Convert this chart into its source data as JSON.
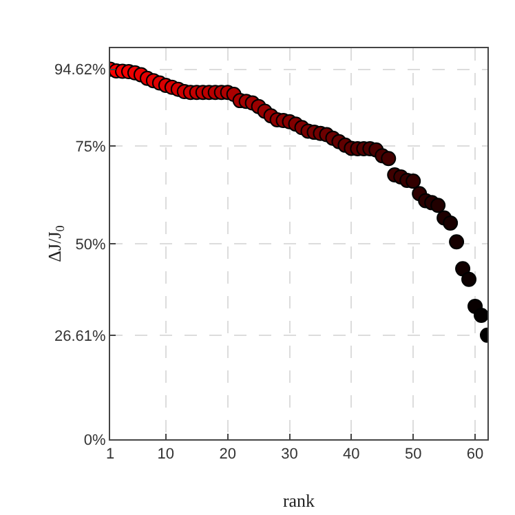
{
  "chart_data": {
    "type": "scatter",
    "xlabel": "rank",
    "ylabel": "ΔJ/J$_{0}$",
    "x": [
      1,
      2,
      3,
      4,
      5,
      6,
      7,
      8,
      9,
      10,
      11,
      12,
      13,
      14,
      15,
      16,
      17,
      18,
      19,
      20,
      21,
      22,
      23,
      24,
      25,
      26,
      27,
      28,
      29,
      30,
      31,
      32,
      33,
      34,
      35,
      36,
      37,
      38,
      39,
      40,
      41,
      42,
      43,
      44,
      45,
      46,
      47,
      48,
      49,
      50,
      51,
      52,
      53,
      54,
      55,
      56,
      57,
      58,
      59,
      60,
      61,
      62
    ],
    "values": [
      94.62,
      94.2,
      94.1,
      94.0,
      93.7,
      93.2,
      92.3,
      91.7,
      91.1,
      90.5,
      90.0,
      89.5,
      88.9,
      88.7,
      88.7,
      88.7,
      88.7,
      88.7,
      88.7,
      88.7,
      88.2,
      86.6,
      86.4,
      86.0,
      85.1,
      83.9,
      82.7,
      81.7,
      81.5,
      81.2,
      80.6,
      79.7,
      78.8,
      78.5,
      78.2,
      77.9,
      77.0,
      76.1,
      75.2,
      74.4,
      74.3,
      74.3,
      74.3,
      74.0,
      72.5,
      71.8,
      67.6,
      67.1,
      66.2,
      66.0,
      62.8,
      61.0,
      60.5,
      59.8,
      56.6,
      55.3,
      50.5,
      43.6,
      40.9,
      34.0,
      31.7,
      26.61
    ],
    "colors": [
      "#ff0000",
      "#fb0000",
      "#f70000",
      "#f20000",
      "#ee0000",
      "#ea0000",
      "#e60000",
      "#e20000",
      "#de0000",
      "#d90000",
      "#d50000",
      "#d10000",
      "#cd0000",
      "#c90000",
      "#c40000",
      "#c00000",
      "#bc0000",
      "#b80000",
      "#b40000",
      "#b00000",
      "#ab0000",
      "#a70000",
      "#a30000",
      "#9f0000",
      "#9b0000",
      "#960000",
      "#920000",
      "#8e0000",
      "#8a0000",
      "#860000",
      "#820000",
      "#7d0000",
      "#790000",
      "#750000",
      "#710000",
      "#6d0000",
      "#690000",
      "#640000",
      "#600000",
      "#5c0000",
      "#580000",
      "#540000",
      "#4f0000",
      "#4b0000",
      "#470000",
      "#430000",
      "#3f0000",
      "#3b0000",
      "#360000",
      "#320000",
      "#2e0000",
      "#2a0000",
      "#260000",
      "#210000",
      "#1d0000",
      "#190000",
      "#150000",
      "#110000",
      "#0d0000",
      "#080000",
      "#040000",
      "#000000"
    ],
    "marker": "circle",
    "xlim": [
      1,
      62
    ],
    "xticks": [
      1,
      10,
      20,
      30,
      40,
      50,
      60
    ],
    "ylim": [
      0,
      100
    ],
    "yticks": [
      {
        "value": 0,
        "label": "0%"
      },
      {
        "value": 26.61,
        "label": "26.61%"
      },
      {
        "value": 50,
        "label": "50%"
      },
      {
        "value": 75,
        "label": "75%"
      },
      {
        "value": 94.62,
        "label": "94.62%"
      }
    ],
    "grid": true
  }
}
